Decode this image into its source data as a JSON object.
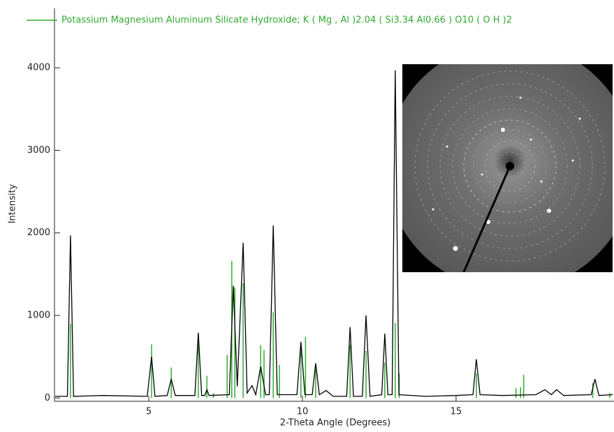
{
  "chart_data": {
    "type": "line",
    "x_label": "2-Theta Angle (Degrees)",
    "y_label": "Intensity",
    "xlim": [
      1.93,
      20.14
    ],
    "ylim": [
      -40,
      4720
    ],
    "xticks": [
      5,
      10,
      15
    ],
    "yticks": [
      0,
      1000,
      2000,
      3000,
      4000
    ],
    "series": [
      {
        "type": "line",
        "color": "#000000",
        "x": [
          1.95,
          2.35,
          2.45,
          2.55,
          3.5,
          4.95,
          5.09,
          5.2,
          5.6,
          5.73,
          5.86,
          6.5,
          6.61,
          6.72,
          6.82,
          6.89,
          6.96,
          7.62,
          7.75,
          7.88,
          8.07,
          8.2,
          8.36,
          8.48,
          8.64,
          8.8,
          8.92,
          9.05,
          9.18,
          9.82,
          9.95,
          10.08,
          10.32,
          10.43,
          10.55,
          10.77,
          11.0,
          11.44,
          11.55,
          11.66,
          11.95,
          12.07,
          12.2,
          12.58,
          12.68,
          12.78,
          12.92,
          13.02,
          13.14,
          14.0,
          15.0,
          15.55,
          15.66,
          15.78,
          16.5,
          17.6,
          17.89,
          18.1,
          18.27,
          18.5,
          19.4,
          19.52,
          19.65,
          20.1
        ],
        "values": [
          20,
          20,
          1970,
          20,
          30,
          20,
          500,
          20,
          30,
          230,
          30,
          30,
          790,
          30,
          30,
          100,
          30,
          40,
          1360,
          140,
          1880,
          60,
          150,
          40,
          380,
          40,
          40,
          2090,
          40,
          40,
          680,
          40,
          40,
          420,
          40,
          90,
          20,
          20,
          860,
          20,
          20,
          1000,
          20,
          40,
          780,
          40,
          40,
          3970,
          40,
          20,
          30,
          40,
          470,
          40,
          30,
          40,
          100,
          40,
          100,
          30,
          40,
          230,
          30,
          40
        ]
      },
      {
        "type": "stem",
        "name": "Potassium Magnesium Aluminum Silicate Hydroxide; K ( Mg , Al )2.04 ( Si3.34 Al0.66 ) O10 ( O H )2",
        "color": "#33aa33",
        "x": [
          2.45,
          5.09,
          5.73,
          6.61,
          6.89,
          7.1,
          7.55,
          7.7,
          7.8,
          8.07,
          8.64,
          8.75,
          9.05,
          9.25,
          9.95,
          10.1,
          10.43,
          11.55,
          12.07,
          12.68,
          13.02,
          13.15,
          15.66,
          16.95,
          17.1,
          17.2,
          19.45,
          20.0
        ],
        "values": [
          900,
          650,
          370,
          780,
          270,
          60,
          520,
          1660,
          1340,
          1390,
          640,
          580,
          1040,
          400,
          620,
          740,
          350,
          640,
          570,
          430,
          910,
          300,
          300,
          120,
          130,
          280,
          180,
          60
        ]
      }
    ]
  }
}
